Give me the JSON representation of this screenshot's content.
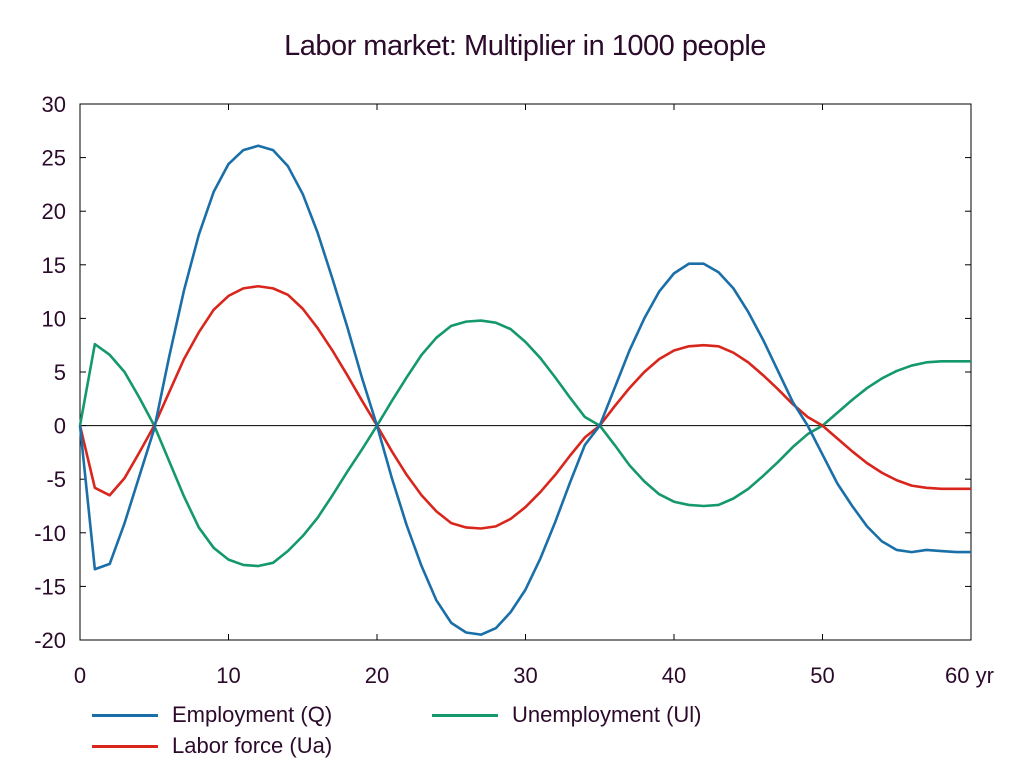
{
  "chart_data": {
    "type": "line",
    "title": "Labor market: Multiplier in 1000 people",
    "xlabel": "",
    "ylabel": "",
    "xlim": [
      0,
      60
    ],
    "ylim": [
      -20,
      30
    ],
    "x_ticks": [
      0,
      10,
      20,
      30,
      40,
      50,
      60
    ],
    "x_tick_labels": [
      "0",
      "10",
      "20",
      "30",
      "40",
      "50",
      "60 yr"
    ],
    "y_ticks": [
      -20,
      -15,
      -10,
      -5,
      0,
      5,
      10,
      15,
      20,
      25,
      30
    ],
    "y_tick_labels": [
      "-20",
      "-15",
      "-10",
      "-5",
      "0",
      "5",
      "10",
      "15",
      "20",
      "25",
      "30"
    ],
    "grid": false,
    "legend_position": "bottom",
    "x": [
      0,
      1,
      2,
      3,
      4,
      5,
      6,
      7,
      8,
      9,
      10,
      11,
      12,
      13,
      14,
      15,
      16,
      17,
      18,
      19,
      20,
      21,
      22,
      23,
      24,
      25,
      26,
      27,
      28,
      29,
      30,
      31,
      32,
      33,
      34,
      35,
      36,
      37,
      38,
      39,
      40,
      41,
      42,
      43,
      44,
      45,
      46,
      47,
      48,
      49,
      50,
      51,
      52,
      53,
      54,
      55,
      56,
      57,
      58,
      59,
      60
    ],
    "series": [
      {
        "name": "Employment (Q)",
        "color": "#1a6fa8",
        "values": [
          0,
          -13.4,
          -12.9,
          -9.1,
          -4.7,
          -0.3,
          6.4,
          12.6,
          17.8,
          21.8,
          24.4,
          25.7,
          26.1,
          25.7,
          24.2,
          21.6,
          18.0,
          13.7,
          9.2,
          4.4,
          0.0,
          -4.9,
          -9.3,
          -13.1,
          -16.3,
          -18.4,
          -19.3,
          -19.5,
          -18.9,
          -17.4,
          -15.3,
          -12.4,
          -9.0,
          -5.3,
          -1.8,
          0.0,
          3.5,
          7.0,
          10.0,
          12.5,
          14.2,
          15.1,
          15.1,
          14.3,
          12.8,
          10.6,
          8.0,
          5.1,
          2.2,
          0.0,
          -2.7,
          -5.4,
          -7.5,
          -9.4,
          -10.8,
          -11.6,
          -11.8,
          -11.6,
          -11.7,
          -11.8,
          -11.8
        ]
      },
      {
        "name": "Unemployment (Ul)",
        "color": "#15996a",
        "values": [
          0,
          7.6,
          6.6,
          5.0,
          2.6,
          0.0,
          -3.3,
          -6.6,
          -9.5,
          -11.4,
          -12.5,
          -13.0,
          -13.1,
          -12.8,
          -11.7,
          -10.3,
          -8.6,
          -6.5,
          -4.3,
          -2.2,
          0.0,
          2.3,
          4.5,
          6.6,
          8.2,
          9.3,
          9.7,
          9.8,
          9.6,
          9.0,
          7.8,
          6.3,
          4.5,
          2.6,
          0.8,
          0.0,
          -1.8,
          -3.7,
          -5.2,
          -6.4,
          -7.1,
          -7.4,
          -7.5,
          -7.4,
          -6.8,
          -5.9,
          -4.7,
          -3.4,
          -2.0,
          -0.8,
          0.0,
          1.2,
          2.4,
          3.5,
          4.4,
          5.1,
          5.6,
          5.9,
          6.0,
          6.0,
          6.0
        ]
      },
      {
        "name": "Labor force (Ua)",
        "color": "#d9261c",
        "values": [
          0,
          -5.8,
          -6.5,
          -4.9,
          -2.5,
          0.0,
          3.1,
          6.2,
          8.7,
          10.8,
          12.1,
          12.8,
          13.0,
          12.8,
          12.2,
          10.9,
          9.1,
          7.0,
          4.7,
          2.3,
          0.0,
          -2.4,
          -4.6,
          -6.5,
          -8.0,
          -9.1,
          -9.5,
          -9.6,
          -9.4,
          -8.7,
          -7.6,
          -6.2,
          -4.6,
          -2.8,
          -1.1,
          0.0,
          1.8,
          3.5,
          5.0,
          6.2,
          7.0,
          7.4,
          7.5,
          7.4,
          6.8,
          5.9,
          4.7,
          3.4,
          2.0,
          0.8,
          0.0,
          -1.2,
          -2.4,
          -3.5,
          -4.4,
          -5.1,
          -5.6,
          -5.8,
          -5.9,
          -5.9,
          -5.9
        ]
      }
    ]
  }
}
